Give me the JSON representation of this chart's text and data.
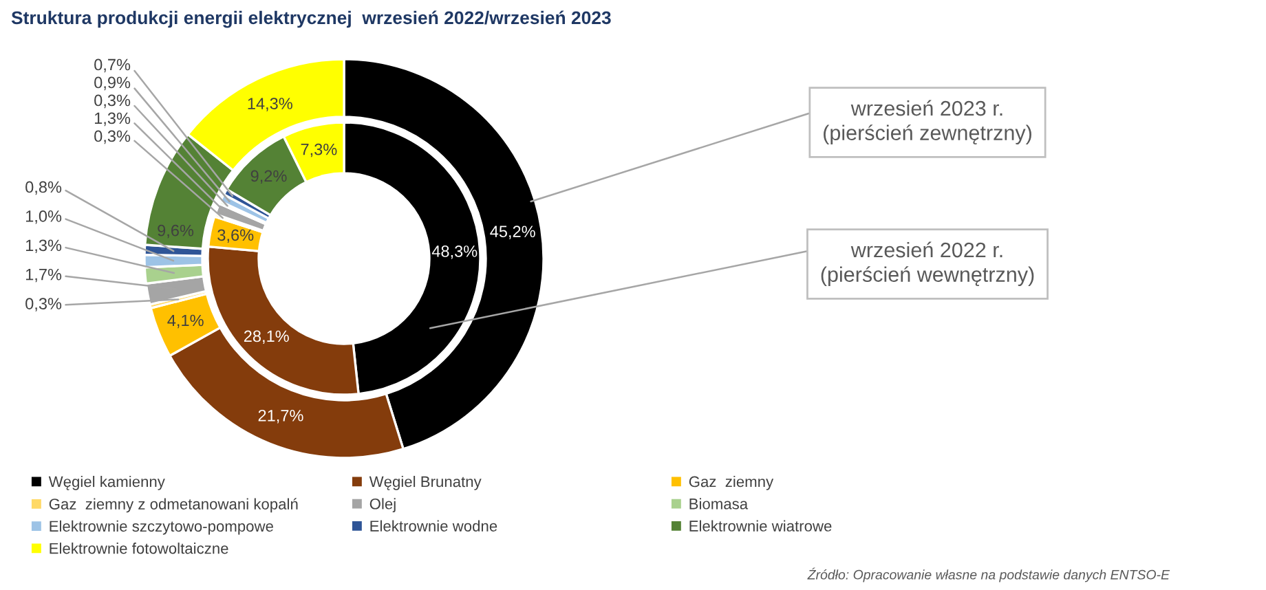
{
  "chart_data": {
    "type": "donut",
    "title": "Struktura produkcji energii elektrycznej  wrzesień 2022/wrzesień 2023",
    "categories": [
      "Węgiel kamienny",
      "Węgiel Brunatny",
      "Gaz  ziemny",
      "Gaz  ziemny z odmetanowani kopalń",
      "Olej",
      "Biomasa",
      "Elektrownie szczytowo-pompowe",
      "Elektrownie wodne",
      "Elektrownie wiatrowe",
      "Elektrownie fotowoltaiczne"
    ],
    "colors": [
      "#000000",
      "#843c0c",
      "#ffc000",
      "#ffd966",
      "#a5a5a5",
      "#a9d18e",
      "#9dc3e6",
      "#2f5597",
      "#548235",
      "#ffff00"
    ],
    "series": [
      {
        "values": [
          45.2,
          21.7,
          4.1,
          0.3,
          1.7,
          1.3,
          1.0,
          0.8,
          9.6,
          14.3
        ],
        "value_labels": [
          "45,2%",
          "21,7%",
          "4,1%",
          "0,3%",
          "1,7%",
          "1,3%",
          "1,0%",
          "0,8%",
          "9,6%",
          "14,3%"
        ]
      },
      {
        "values": [
          48.3,
          28.1,
          3.6,
          0.3,
          1.3,
          0.3,
          0.9,
          0.7,
          9.2,
          7.3
        ],
        "value_labels": [
          "48,3%",
          "28,1%",
          "3,6%",
          "0,3%",
          "1,3%",
          "0,3%",
          "0,9%",
          "0,7%",
          "9,2%",
          "7,3%"
        ]
      }
    ],
    "legend": "bottom",
    "annotations": [
      "wrzesień 2023 r.\n(pierścień zewnętrzny)",
      "wrzesień 2022 r.\n(pierścień wewnętrzny)",
      "Źródło: Opracowanie własne na podstawie danych ENTSO-E"
    ]
  }
}
